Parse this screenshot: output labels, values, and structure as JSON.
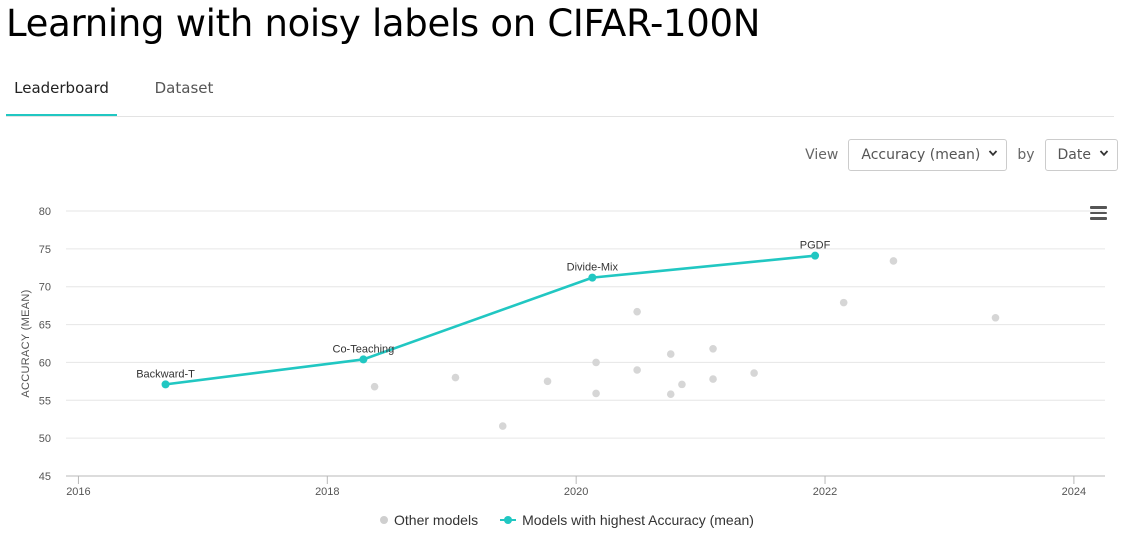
{
  "page": {
    "title": "Learning with noisy labels on CIFAR-100N",
    "tabs": [
      {
        "label": "Leaderboard",
        "active": true
      },
      {
        "label": "Dataset",
        "active": false
      }
    ]
  },
  "controls": {
    "view_label": "View",
    "metric_value": "Accuracy (mean)",
    "by_label": "by",
    "axis_value": "Date"
  },
  "colors": {
    "accent": "#21c7c2",
    "other": "#d6d6d6",
    "grid": "#e6e6e6"
  },
  "chart_data": {
    "type": "scatter",
    "ylabel": "ACCURACY (MEAN)",
    "ylim": [
      45,
      80
    ],
    "y_ticks": [
      45,
      50,
      55,
      60,
      65,
      70,
      75,
      80
    ],
    "xlim": [
      2015.9,
      2024.25
    ],
    "x_ticks": [
      2016,
      2018,
      2020,
      2022,
      2024
    ],
    "grid": true,
    "legend": {
      "placement": "bottom",
      "other_label": "Other models",
      "best_label": "Models with highest Accuracy (mean)"
    },
    "best_series": [
      {
        "name": "Backward-T",
        "x": 2016.7,
        "y": 57.1
      },
      {
        "name": "Co-Teaching",
        "x": 2018.29,
        "y": 60.4
      },
      {
        "name": "Divide-Mix",
        "x": 2020.13,
        "y": 71.2
      },
      {
        "name": "PGDF",
        "x": 2021.92,
        "y": 74.1
      }
    ],
    "other_points": [
      {
        "x": 2018.38,
        "y": 56.8
      },
      {
        "x": 2019.03,
        "y": 58.0
      },
      {
        "x": 2019.41,
        "y": 51.6
      },
      {
        "x": 2019.77,
        "y": 57.5
      },
      {
        "x": 2020.16,
        "y": 60.0
      },
      {
        "x": 2020.16,
        "y": 55.9
      },
      {
        "x": 2020.49,
        "y": 66.7
      },
      {
        "x": 2020.49,
        "y": 59.0
      },
      {
        "x": 2020.76,
        "y": 61.1
      },
      {
        "x": 2020.76,
        "y": 55.8
      },
      {
        "x": 2020.85,
        "y": 57.1
      },
      {
        "x": 2021.1,
        "y": 61.8
      },
      {
        "x": 2021.1,
        "y": 57.8
      },
      {
        "x": 2021.43,
        "y": 58.6
      },
      {
        "x": 2022.15,
        "y": 67.9
      },
      {
        "x": 2022.55,
        "y": 73.4
      },
      {
        "x": 2023.37,
        "y": 65.9
      }
    ]
  }
}
